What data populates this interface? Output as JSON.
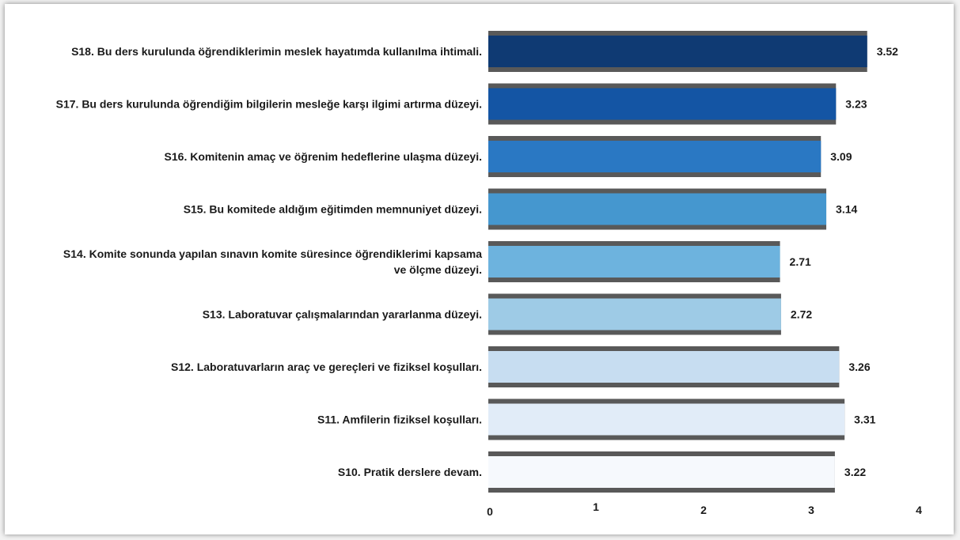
{
  "chart_data": {
    "type": "bar",
    "orientation": "horizontal",
    "categories": [
      "S18. Bu ders kurulunda öğrendiklerimin meslek hayatımda kullanılma ihtimali.",
      "S17. Bu ders kurulunda öğrendiğim bilgilerin mesleğe karşı ilgimi artırma düzeyi.",
      "S16. Komitenin amaç ve öğrenim hedeflerine ulaşma düzeyi.",
      "S15. Bu komitede aldığım eğitimden memnuniyet düzeyi.",
      "S14. Komite sonunda yapılan sınavın komite süresince öğrendiklerimi kapsama ve ölçme düzeyi.",
      "S13. Laboratuvar çalışmalarından yararlanma düzeyi.",
      "S12. Laboratuvarların araç ve gereçleri ve fiziksel koşulları.",
      "S11. Amfilerin fiziksel koşulları.",
      "S10. Pratik derslere devam."
    ],
    "category_lines": [
      [
        "S18. Bu ders kurulunda öğrendiklerimin meslek hayatımda kullanılma ihtimali."
      ],
      [
        "S17. Bu ders kurulunda öğrendiğim bilgilerin mesleğe karşı ilgimi artırma düzeyi."
      ],
      [
        "S16. Komitenin amaç ve öğrenim hedeflerine ulaşma düzeyi."
      ],
      [
        "S15. Bu komitede aldığım eğitimden memnuniyet düzeyi."
      ],
      [
        "S14. Komite sonunda yapılan sınavın komite süresince öğrendiklerimi kapsama",
        "ve ölçme düzeyi."
      ],
      [
        "S13. Laboratuvar çalışmalarından yararlanma düzeyi."
      ],
      [
        "S12. Laboratuvarların araç ve gereçleri ve fiziksel koşulları."
      ],
      [
        "S11. Amfilerin fiziksel koşulları."
      ],
      [
        "S10. Pratik derslere devam."
      ]
    ],
    "values": [
      3.52,
      3.23,
      3.09,
      3.14,
      2.71,
      2.72,
      3.26,
      3.31,
      3.22
    ],
    "value_labels": [
      "3.52",
      "3.23",
      "3.09",
      "3.14",
      "2.71",
      "2.72",
      "3.26",
      "3.31",
      "3.22"
    ],
    "bar_colors": [
      "#0f3a73",
      "#1455a4",
      "#2a78c3",
      "#4597cf",
      "#6db3de",
      "#9ecbe6",
      "#c7ddf1",
      "#e1ecf8",
      "#f6f9fd"
    ],
    "shadow_color": "#595959",
    "xlim": [
      0,
      4
    ],
    "xticks": [
      "0",
      "1",
      "2",
      "3",
      "4"
    ],
    "grid": false,
    "legend": "none",
    "title": "",
    "xlabel": "",
    "ylabel": ""
  }
}
